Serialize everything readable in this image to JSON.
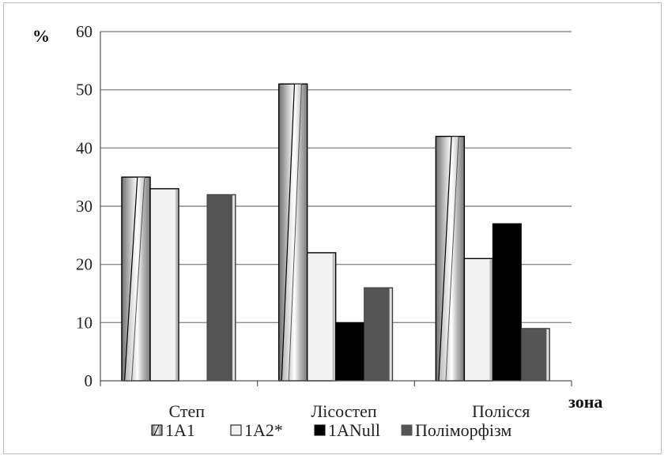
{
  "chart_data": {
    "type": "bar",
    "categories": [
      "Степ",
      "Лісостеп",
      "Полісся"
    ],
    "series": [
      {
        "name": "1A1",
        "values": [
          35,
          51,
          42
        ],
        "pattern": "diagonal-gradient",
        "color": "#a0a0a0"
      },
      {
        "name": "1A2*",
        "values": [
          33,
          22,
          21
        ],
        "pattern": "light",
        "color": "#f2f2f2"
      },
      {
        "name": "1ANull",
        "values": [
          0,
          10,
          27
        ],
        "pattern": "solid",
        "color": "#000000"
      },
      {
        "name": "Поліморфізм",
        "values": [
          32,
          16,
          9
        ],
        "pattern": "solid",
        "color": "#555555"
      }
    ],
    "ylabel": "%",
    "xlabel": "зона",
    "ylim": [
      0,
      60
    ],
    "yticks": [
      0,
      10,
      20,
      30,
      40,
      50,
      60
    ],
    "grid": true,
    "legend": "bottom"
  }
}
